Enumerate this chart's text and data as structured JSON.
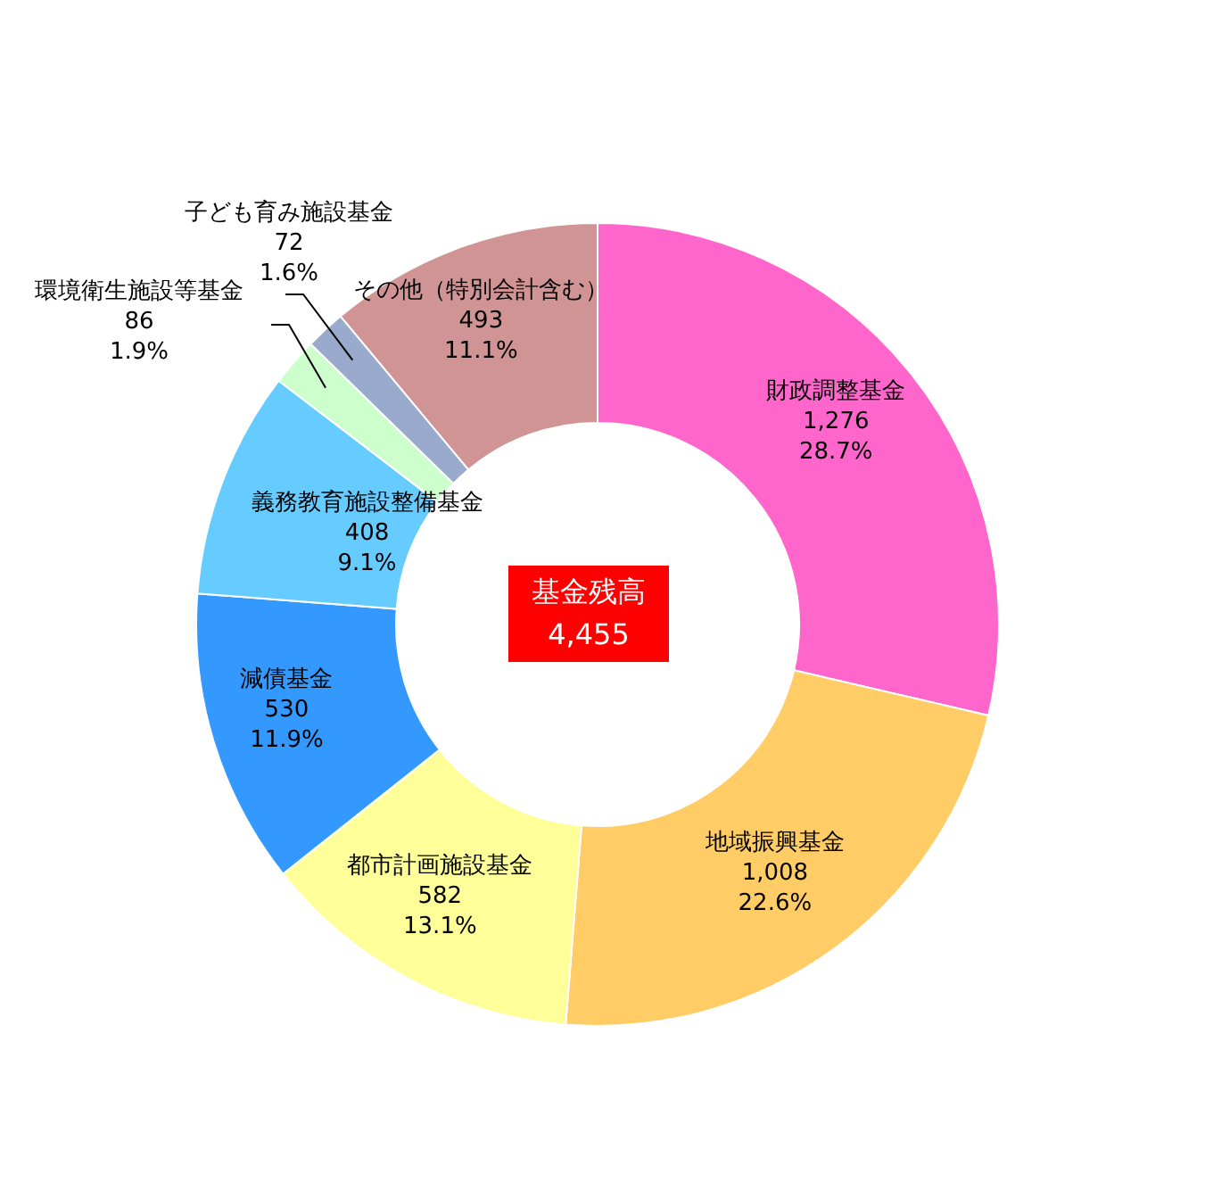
{
  "chart_data": {
    "type": "donut",
    "categories": [
      "財政調整基金",
      "地域振興基金",
      "都市計画施設基金",
      "減債基金",
      "義務教育施設整備基金",
      "環境衛生施設等基金",
      "子ども育み施設基金",
      "その他（特別会計含む）"
    ],
    "values": [
      1276,
      1008,
      582,
      530,
      408,
      86,
      72,
      493
    ],
    "colors": [
      "#ff66cc",
      "#ffcc66",
      "#ffff99",
      "#3399ff",
      "#66ccff",
      "#ccffcc",
      "#99aacc",
      "#d09494"
    ],
    "value_labels": [
      "1,276",
      "1,008",
      "582",
      "530",
      "408",
      "86",
      "72",
      "493"
    ],
    "annotations": [
      "28.7%",
      "22.6%",
      "13.1%",
      "11.9%",
      "9.1%",
      "1.9%",
      "1.6%",
      "11.1%",
      "基金残高",
      "4,455"
    ],
    "legend": false
  }
}
